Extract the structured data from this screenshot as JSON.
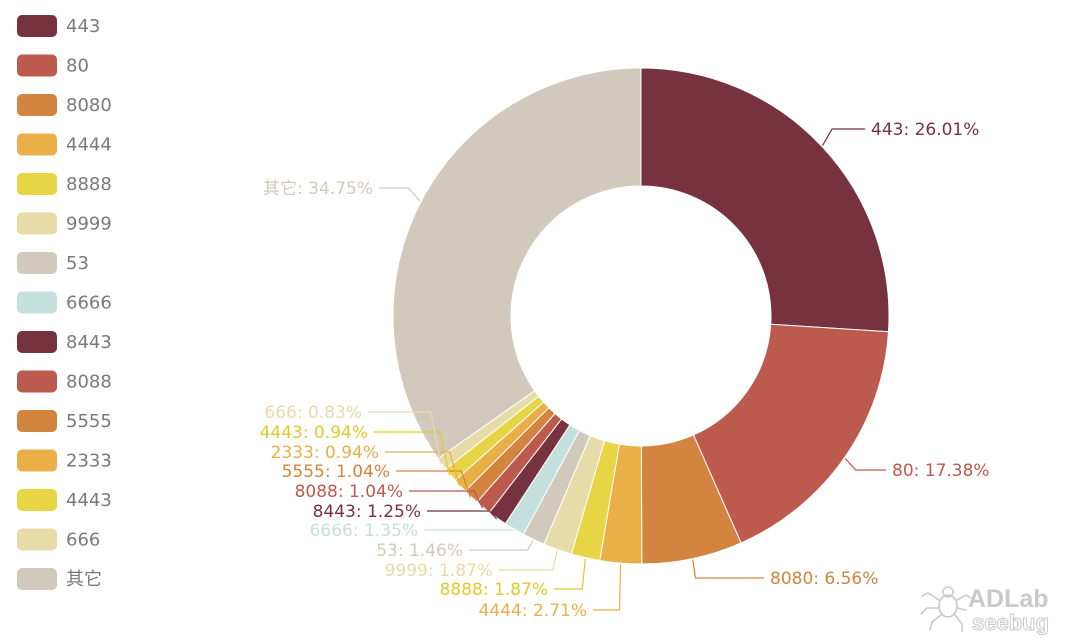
{
  "chart_data": {
    "type": "pie",
    "donut": true,
    "legend_position": "left",
    "slices": [
      {
        "label": "443",
        "value": 26.01,
        "display": "443: 26.01%",
        "color": "#76323f"
      },
      {
        "label": "80",
        "value": 17.38,
        "display": "80: 17.38%",
        "color": "#bc5a4e"
      },
      {
        "label": "8080",
        "value": 6.56,
        "display": "8080: 6.56%",
        "color": "#d3843f"
      },
      {
        "label": "4444",
        "value": 2.71,
        "display": "4444: 2.71%",
        "color": "#ebaf47"
      },
      {
        "label": "8888",
        "value": 1.87,
        "display": "8888: 1.87%",
        "color": "#e7d545"
      },
      {
        "label": "9999",
        "value": 1.87,
        "display": "9999: 1.87%",
        "color": "#e7dba7"
      },
      {
        "label": "53",
        "value": 1.46,
        "display": "53: 1.46%",
        "color": "#d1cabc"
      },
      {
        "label": "6666",
        "value": 1.35,
        "display": "6666: 1.35%",
        "color": "#c3e0dc"
      },
      {
        "label": "8443",
        "value": 1.25,
        "display": "8443: 1.25%",
        "color": "#76323f"
      },
      {
        "label": "8088",
        "value": 1.04,
        "display": "8088: 1.04%",
        "color": "#bc5a4e"
      },
      {
        "label": "5555",
        "value": 1.04,
        "display": "5555: 1.04%",
        "color": "#d3843f"
      },
      {
        "label": "2333",
        "value": 0.94,
        "display": "2333: 0.94%",
        "color": "#ebaf47"
      },
      {
        "label": "4443",
        "value": 0.94,
        "display": "4443: 0.94%",
        "color": "#e7d545"
      },
      {
        "label": "666",
        "value": 0.83,
        "display": "666: 0.83%",
        "color": "#e7dba7"
      },
      {
        "label": "其它",
        "value": 34.75,
        "display": "其它: 34.75%",
        "color": "#d1cabc"
      }
    ]
  },
  "watermark": {
    "brand": "ADLab",
    "sub": "seebug",
    "icon": "spider-icon"
  }
}
